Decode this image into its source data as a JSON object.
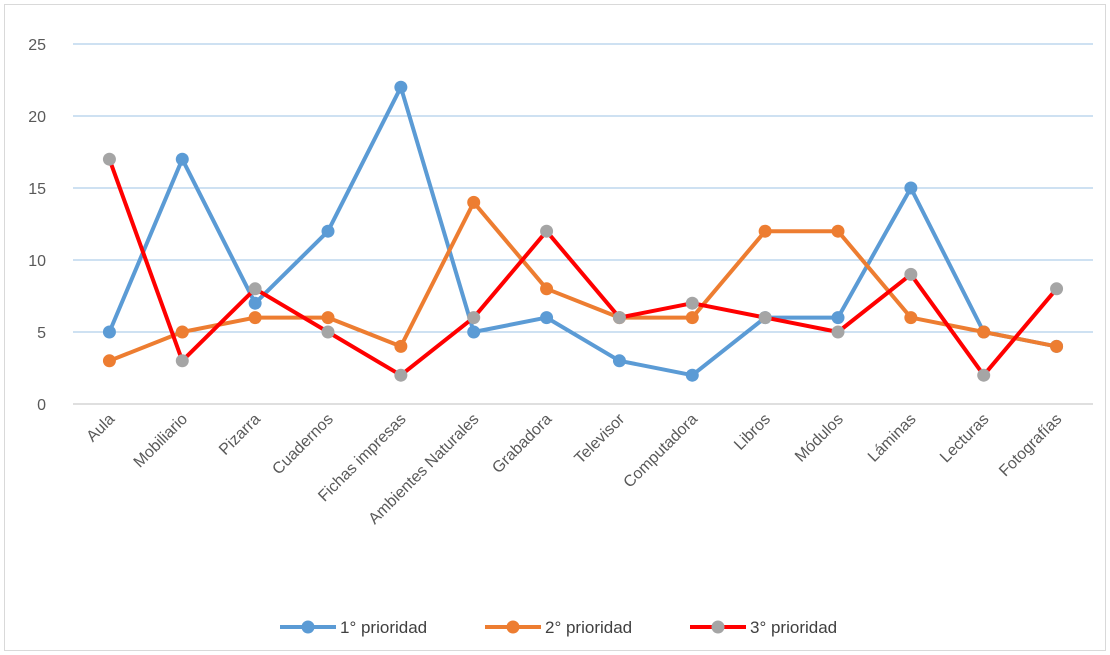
{
  "chart_data": {
    "type": "line",
    "title": "",
    "xlabel": "",
    "ylabel": "",
    "ylim": [
      0,
      25
    ],
    "yticks": [
      0,
      5,
      10,
      15,
      20,
      25
    ],
    "grid": true,
    "legend_position": "bottom",
    "categories": [
      "Aula",
      "Mobiliario",
      "Pizarra",
      "Cuadernos",
      "Fichas impresas",
      "Ambientes Naturales",
      "Grabadora",
      "Televisor",
      "Computadora",
      "Libros",
      "Módulos",
      "Láminas",
      "Lecturas",
      "Fotografías"
    ],
    "series": [
      {
        "name": "1° prioridad",
        "line_color": "#5b9bd5",
        "marker_color": "#5b9bd5",
        "values": [
          5,
          17,
          7,
          12,
          22,
          5,
          6,
          3,
          2,
          6,
          6,
          15,
          5,
          4
        ]
      },
      {
        "name": "2° prioridad",
        "line_color": "#ed7d31",
        "marker_color": "#ed7d31",
        "values": [
          3,
          5,
          6,
          6,
          4,
          14,
          8,
          6,
          6,
          12,
          12,
          6,
          5,
          4
        ]
      },
      {
        "name": "3° prioridad",
        "line_color": "#ff0000",
        "marker_color": "#a5a5a5",
        "values": [
          17,
          3,
          8,
          5,
          2,
          6,
          12,
          6,
          7,
          6,
          5,
          9,
          2,
          8
        ]
      }
    ]
  }
}
